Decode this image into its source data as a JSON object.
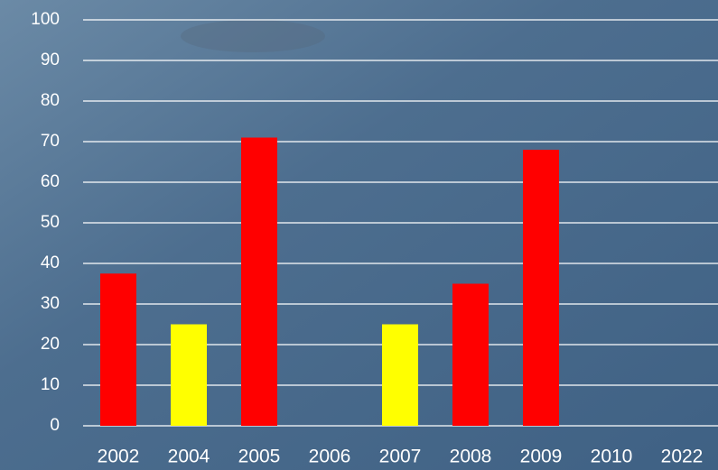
{
  "chart_data": {
    "type": "bar",
    "categories": [
      "2002",
      "2004",
      "2005",
      "2006",
      "2007",
      "2008",
      "2009",
      "2010",
      "2022"
    ],
    "values": [
      37.5,
      25,
      71,
      null,
      25,
      35,
      68,
      null,
      null
    ],
    "colors": [
      "#ff0000",
      "#ffff00",
      "#ff0000",
      null,
      "#ffff00",
      "#ff0000",
      "#ff0000",
      null,
      null
    ],
    "ylim": [
      0,
      100
    ],
    "yticks": [
      0,
      10,
      20,
      30,
      40,
      50,
      60,
      70,
      80,
      90,
      100
    ],
    "grid": true
  }
}
